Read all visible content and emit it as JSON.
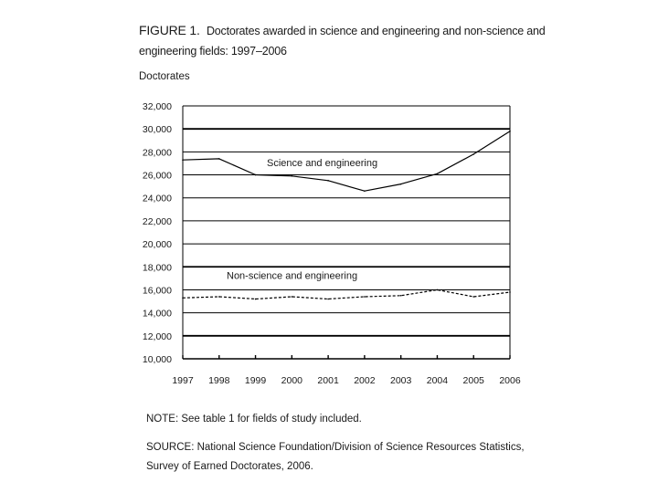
{
  "figure": {
    "label": "FIGURE 1.",
    "title": "Doctorates awarded in science and engineering and non-science and engineering fields: 1997–2006",
    "note": "NOTE: See table 1 for fields of study included.",
    "source": "SOURCE:  National Science Foundation/Division of Science Resources Statistics, Survey of Earned Doctorates, 2006."
  },
  "chart_data": {
    "type": "line",
    "title": "Doctorates awarded in science and engineering and non-science and engineering fields: 1997–2006",
    "xlabel": "",
    "ylabel": "Doctorates",
    "ylim": [
      10000,
      32000
    ],
    "yticks": [
      10000,
      12000,
      14000,
      16000,
      18000,
      20000,
      22000,
      24000,
      26000,
      28000,
      30000,
      32000
    ],
    "ytick_labels": [
      "10,000",
      "12,000",
      "14,000",
      "16,000",
      "18,000",
      "20,000",
      "22,000",
      "24,000",
      "26,000",
      "28,000",
      "30,000",
      "32,000"
    ],
    "categories": [
      "1997",
      "1998",
      "1999",
      "2000",
      "2001",
      "2002",
      "2003",
      "2004",
      "2005",
      "2006"
    ],
    "series": [
      {
        "name": "Science and engineering",
        "style": "solid",
        "values": [
          27300,
          27400,
          26000,
          25900,
          25500,
          24600,
          25200,
          26100,
          27800,
          29800
        ]
      },
      {
        "name": "Non-science and engineering",
        "style": "dashed",
        "values": [
          15300,
          15400,
          15200,
          15400,
          15200,
          15400,
          15500,
          16000,
          15400,
          15800
        ]
      }
    ],
    "grid": true
  }
}
